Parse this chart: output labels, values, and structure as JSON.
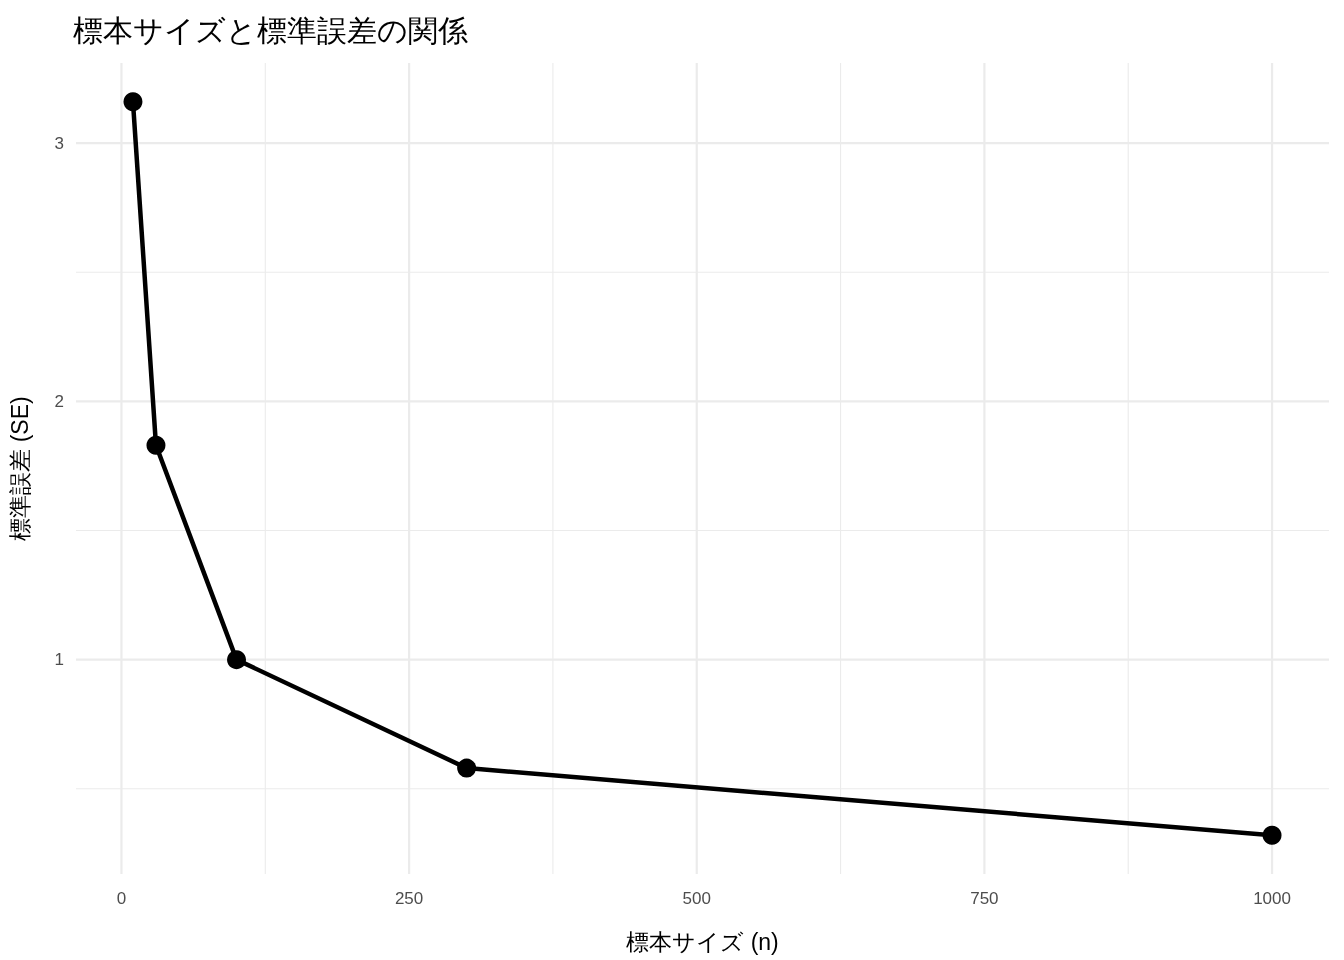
{
  "chart_data": {
    "type": "line",
    "title": "標本サイズと標準誤差の関係",
    "xlabel": "標本サイズ (n)",
    "ylabel": "標準誤差 (SE)",
    "x": [
      10,
      30,
      100,
      300,
      1000
    ],
    "series": [
      {
        "color": "#000000",
        "values": [
          3.16,
          1.83,
          1.0,
          0.58,
          0.32
        ]
      }
    ],
    "xlim": [
      -39.5,
      1049.5
    ],
    "ylim": [
      0.17,
      3.31
    ],
    "xticks": [
      0,
      {
        "value": 125,
        "label": null
      },
      250,
      {
        "value": 375,
        "label": null
      },
      500,
      {
        "value": 625,
        "label": null
      },
      750,
      {
        "value": 875,
        "label": null
      },
      1000
    ],
    "yticks": [
      {
        "value": 0.5,
        "label": null
      },
      1,
      {
        "value": 1.5,
        "label": null
      },
      2,
      {
        "value": 2.5,
        "label": null
      },
      3
    ],
    "grid": true,
    "marker": "circle",
    "line_style": "solid"
  }
}
